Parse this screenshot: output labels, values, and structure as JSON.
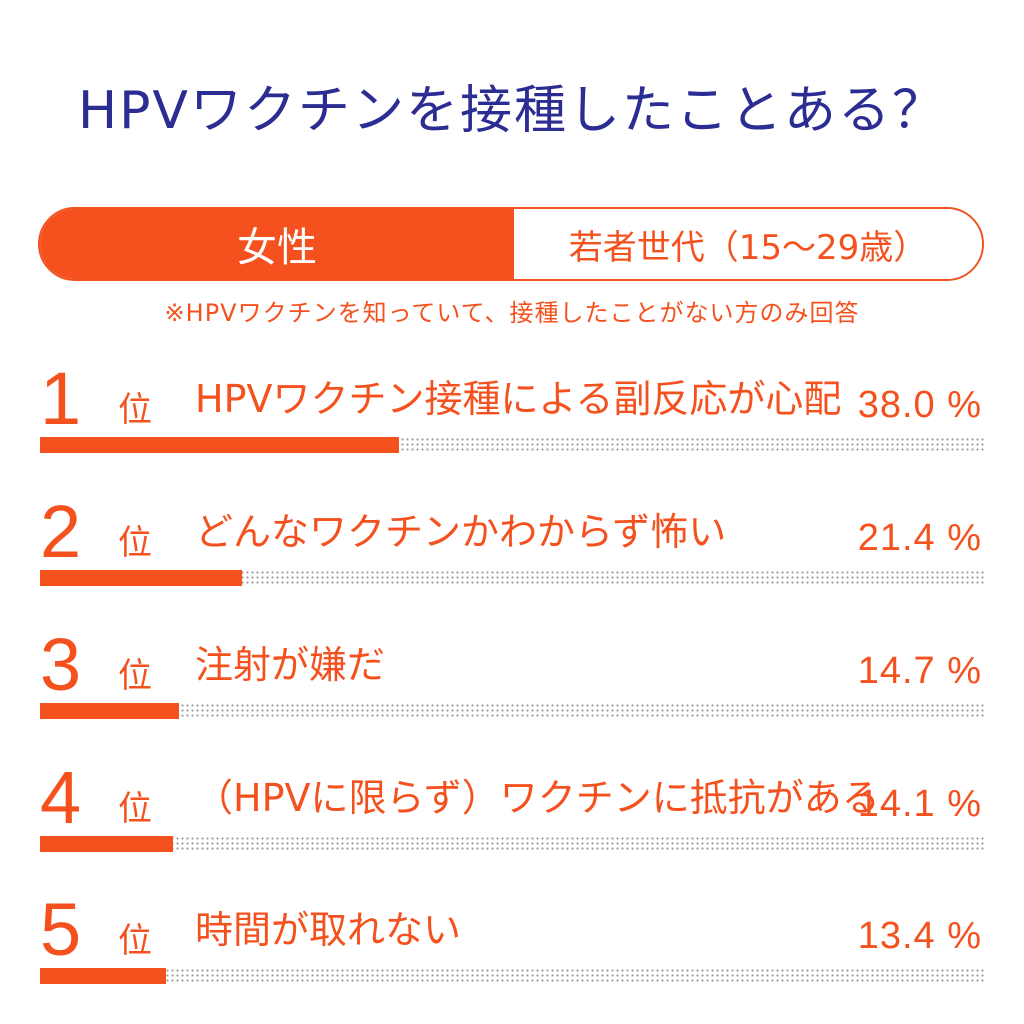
{
  "title": "HPVワクチンを接種したことある？",
  "segments": {
    "left_label": "女性",
    "right_label": "若者世代（15〜29歳）"
  },
  "note": "※HPVワクチンを知っていて、接種したことがない方のみ回答",
  "accent_color": "#f4511e",
  "title_color": "#2b2d92",
  "rank_suffix": "位",
  "chart_data": {
    "type": "bar",
    "orientation": "horizontal",
    "title": "HPVワクチンを接種したことある？",
    "subtitle": "※HPVワクチンを知っていて、接種したことがない方のみ回答",
    "categories": [
      "HPVワクチン接種による副反応が心配",
      "どんなワクチンかわからず怖い",
      "注射が嫌だ",
      "（HPVに限らず）ワクチンに抵抗がある",
      "時間が取れない"
    ],
    "ranks": [
      "1",
      "2",
      "3",
      "4",
      "5"
    ],
    "values": [
      38.0,
      21.4,
      14.7,
      14.1,
      13.4
    ],
    "value_labels": [
      "38.0 %",
      "21.4 %",
      "14.7 %",
      "14.1 %",
      "13.4 %"
    ],
    "unit": "%",
    "xlim": [
      0,
      100
    ],
    "grid": false,
    "legend": "none"
  }
}
